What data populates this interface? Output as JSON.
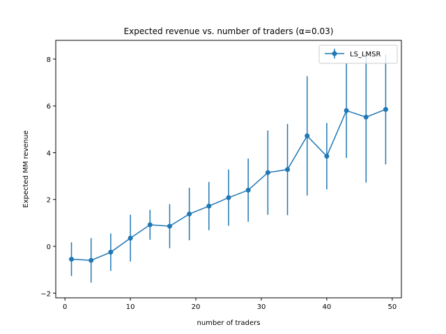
{
  "chart_data": {
    "type": "line",
    "title": "Expected revenue vs. number of traders (α=0.03)",
    "xlabel": "number of traders",
    "ylabel": "Expected MM revenue",
    "xlim": [
      -1.4,
      51.4
    ],
    "ylim": [
      -2.2,
      8.8
    ],
    "xticks": [
      0,
      10,
      20,
      30,
      40,
      50
    ],
    "yticks": [
      -2,
      0,
      2,
      4,
      6,
      8
    ],
    "grid": false,
    "legend_position": "top-right",
    "series": [
      {
        "name": "LS_LMSR",
        "color": "#1f77b4",
        "marker": "circle",
        "error_bars": true,
        "x": [
          1,
          4,
          7,
          10,
          13,
          16,
          19,
          22,
          25,
          28,
          31,
          34,
          37,
          40,
          43,
          46,
          49
        ],
        "y": [
          -0.55,
          -0.6,
          -0.25,
          0.35,
          0.92,
          0.86,
          1.38,
          1.72,
          2.08,
          2.4,
          3.15,
          3.28,
          4.72,
          3.85,
          5.8,
          5.52,
          5.85
        ],
        "y_err": [
          0.72,
          0.95,
          0.8,
          1.0,
          0.64,
          0.94,
          1.12,
          1.03,
          1.2,
          1.35,
          1.8,
          1.95,
          2.55,
          1.42,
          2.02,
          2.8,
          2.35
        ]
      }
    ]
  }
}
